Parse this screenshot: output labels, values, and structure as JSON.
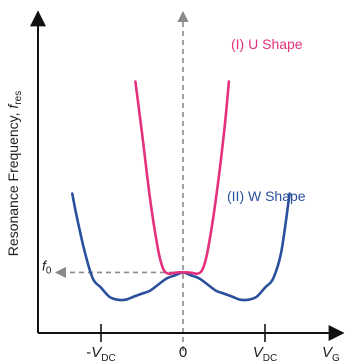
{
  "chart_data": {
    "type": "line",
    "title": "",
    "ylabel": {
      "text": "Resonance Frequency, ",
      "var": "f",
      "sub": "res"
    },
    "xlabel": {
      "var": "V",
      "sub": "G"
    },
    "xlim": [
      -1.5,
      1.3
    ],
    "ylim": [
      0,
      1.0
    ],
    "grid": false,
    "x_ticks": [
      {
        "x": -1,
        "pre": "-",
        "var": "V",
        "sub": "DC"
      },
      {
        "x": 0,
        "text": "0"
      },
      {
        "x": 1,
        "var": "V",
        "sub": "DC"
      }
    ],
    "f0": {
      "value": 0.2,
      "var": "f",
      "sub": "0"
    },
    "series": [
      {
        "name": "(I) U Shape",
        "color": "#e5307e",
        "x": [
          -0.58,
          -0.5,
          -0.4,
          -0.3,
          -0.24,
          -0.18,
          -0.12,
          -0.06,
          0,
          0.06,
          0.12,
          0.18,
          0.24,
          0.3,
          0.4,
          0.5,
          0.56
        ],
        "y": [
          0.83,
          0.66,
          0.44,
          0.27,
          0.211,
          0.196,
          0.198,
          0.2,
          0.2,
          0.2,
          0.198,
          0.196,
          0.211,
          0.27,
          0.44,
          0.66,
          0.83
        ]
      },
      {
        "name": "(II) W Shape",
        "color": "#2a4f9d",
        "x": [
          -1.35,
          -1.3,
          -1.2,
          -1.1,
          -1.0,
          -0.9,
          -0.8,
          -0.7,
          -0.6,
          -0.5,
          -0.4,
          -0.3,
          -0.2,
          -0.1,
          0,
          0.1,
          0.2,
          0.3,
          0.4,
          0.5,
          0.6,
          0.7,
          0.8,
          0.9,
          1.0,
          1.1,
          1.2,
          1.3
        ],
        "y": [
          0.46,
          0.39,
          0.27,
          0.18,
          0.15,
          0.12,
          0.11,
          0.11,
          0.12,
          0.13,
          0.14,
          0.16,
          0.18,
          0.19,
          0.2,
          0.19,
          0.18,
          0.16,
          0.14,
          0.13,
          0.12,
          0.11,
          0.11,
          0.12,
          0.15,
          0.18,
          0.27,
          0.46
        ]
      }
    ],
    "annotations": [
      {
        "series": 0,
        "text": "(I) U Shape",
        "color": "#e5307e"
      },
      {
        "series": 1,
        "text": "(II) W Shape",
        "color": "#2a4f9d"
      }
    ],
    "colors": {
      "axis": "#111111",
      "dashed": "#8a8a8a"
    }
  }
}
